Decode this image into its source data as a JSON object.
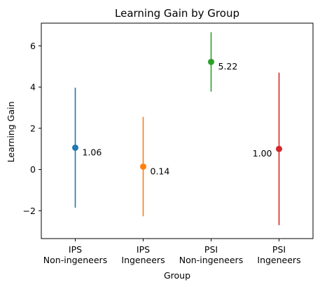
{
  "chart_data": {
    "type": "scatter",
    "title": "Learning Gain by Group",
    "xlabel": "Group",
    "ylabel": "Learning Gain",
    "ylim": [
      -3.35,
      7.1
    ],
    "yticks": [
      -2,
      0,
      2,
      4,
      6
    ],
    "grid": false,
    "categories": [
      [
        "IPS",
        "Non-ingeneers"
      ],
      [
        "IPS",
        "Ingeneers"
      ],
      [
        "PSI",
        "Non-ingeneers"
      ],
      [
        "PSI",
        "Ingeneers"
      ]
    ],
    "points": [
      {
        "mean": 1.06,
        "low": -1.85,
        "high": 3.97,
        "label": "1.06",
        "label_side": "right",
        "color": "#1f77b4"
      },
      {
        "mean": 0.14,
        "low": -2.27,
        "high": 2.55,
        "label": "0.14",
        "label_side": "right",
        "color": "#ff7f0e"
      },
      {
        "mean": 5.22,
        "low": 3.78,
        "high": 6.66,
        "label": "5.22",
        "label_side": "right",
        "color": "#2ca02c"
      },
      {
        "mean": 1.0,
        "low": -2.7,
        "high": 4.7,
        "label": "1.00",
        "label_side": "left",
        "color": "#d62728"
      }
    ]
  }
}
